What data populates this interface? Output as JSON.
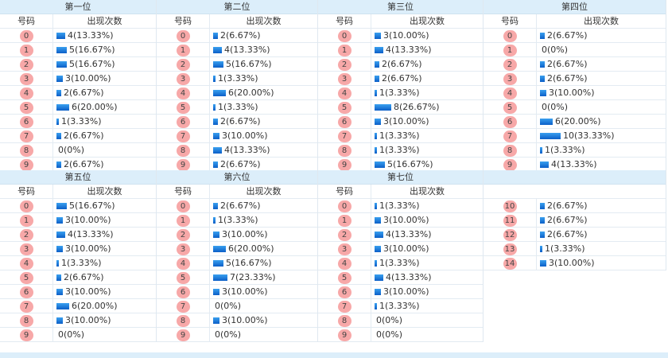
{
  "header": {
    "num_label": "号码",
    "count_label": "出现次数"
  },
  "positions": [
    {
      "title": "第一位",
      "rows": [
        {
          "n": "0",
          "c": 4,
          "t": "4(13.33%)"
        },
        {
          "n": "1",
          "c": 5,
          "t": "5(16.67%)"
        },
        {
          "n": "2",
          "c": 5,
          "t": "5(16.67%)"
        },
        {
          "n": "3",
          "c": 3,
          "t": "3(10.00%)"
        },
        {
          "n": "4",
          "c": 2,
          "t": "2(6.67%)"
        },
        {
          "n": "5",
          "c": 6,
          "t": "6(20.00%)"
        },
        {
          "n": "6",
          "c": 1,
          "t": "1(3.33%)"
        },
        {
          "n": "7",
          "c": 2,
          "t": "2(6.67%)"
        },
        {
          "n": "8",
          "c": 0,
          "t": "0(0%)"
        },
        {
          "n": "9",
          "c": 2,
          "t": "2(6.67%)"
        }
      ]
    },
    {
      "title": "第二位",
      "rows": [
        {
          "n": "0",
          "c": 2,
          "t": "2(6.67%)"
        },
        {
          "n": "1",
          "c": 4,
          "t": "4(13.33%)"
        },
        {
          "n": "2",
          "c": 5,
          "t": "5(16.67%)"
        },
        {
          "n": "3",
          "c": 1,
          "t": "1(3.33%)"
        },
        {
          "n": "4",
          "c": 6,
          "t": "6(20.00%)"
        },
        {
          "n": "5",
          "c": 1,
          "t": "1(3.33%)"
        },
        {
          "n": "6",
          "c": 2,
          "t": "2(6.67%)"
        },
        {
          "n": "7",
          "c": 3,
          "t": "3(10.00%)"
        },
        {
          "n": "8",
          "c": 4,
          "t": "4(13.33%)"
        },
        {
          "n": "9",
          "c": 2,
          "t": "2(6.67%)"
        }
      ]
    },
    {
      "title": "第三位",
      "rows": [
        {
          "n": "0",
          "c": 3,
          "t": "3(10.00%)"
        },
        {
          "n": "1",
          "c": 4,
          "t": "4(13.33%)"
        },
        {
          "n": "2",
          "c": 2,
          "t": "2(6.67%)"
        },
        {
          "n": "3",
          "c": 2,
          "t": "2(6.67%)"
        },
        {
          "n": "4",
          "c": 1,
          "t": "1(3.33%)"
        },
        {
          "n": "5",
          "c": 8,
          "t": "8(26.67%)"
        },
        {
          "n": "6",
          "c": 3,
          "t": "3(10.00%)"
        },
        {
          "n": "7",
          "c": 1,
          "t": "1(3.33%)"
        },
        {
          "n": "8",
          "c": 1,
          "t": "1(3.33%)"
        },
        {
          "n": "9",
          "c": 5,
          "t": "5(16.67%)"
        }
      ]
    },
    {
      "title": "第四位",
      "rows": [
        {
          "n": "0",
          "c": 2,
          "t": "2(6.67%)"
        },
        {
          "n": "1",
          "c": 0,
          "t": "0(0%)"
        },
        {
          "n": "2",
          "c": 2,
          "t": "2(6.67%)"
        },
        {
          "n": "3",
          "c": 2,
          "t": "2(6.67%)"
        },
        {
          "n": "4",
          "c": 3,
          "t": "3(10.00%)"
        },
        {
          "n": "5",
          "c": 0,
          "t": "0(0%)"
        },
        {
          "n": "6",
          "c": 6,
          "t": "6(20.00%)"
        },
        {
          "n": "7",
          "c": 10,
          "t": "10(33.33%)"
        },
        {
          "n": "8",
          "c": 1,
          "t": "1(3.33%)"
        },
        {
          "n": "9",
          "c": 4,
          "t": "4(13.33%)"
        }
      ]
    },
    {
      "title": "第五位",
      "rows": [
        {
          "n": "0",
          "c": 5,
          "t": "5(16.67%)"
        },
        {
          "n": "1",
          "c": 3,
          "t": "3(10.00%)"
        },
        {
          "n": "2",
          "c": 4,
          "t": "4(13.33%)"
        },
        {
          "n": "3",
          "c": 3,
          "t": "3(10.00%)"
        },
        {
          "n": "4",
          "c": 1,
          "t": "1(3.33%)"
        },
        {
          "n": "5",
          "c": 2,
          "t": "2(6.67%)"
        },
        {
          "n": "6",
          "c": 3,
          "t": "3(10.00%)"
        },
        {
          "n": "7",
          "c": 6,
          "t": "6(20.00%)"
        },
        {
          "n": "8",
          "c": 3,
          "t": "3(10.00%)"
        },
        {
          "n": "9",
          "c": 0,
          "t": "0(0%)"
        }
      ]
    },
    {
      "title": "第六位",
      "rows": [
        {
          "n": "0",
          "c": 2,
          "t": "2(6.67%)"
        },
        {
          "n": "1",
          "c": 1,
          "t": "1(3.33%)"
        },
        {
          "n": "2",
          "c": 3,
          "t": "3(10.00%)"
        },
        {
          "n": "3",
          "c": 6,
          "t": "6(20.00%)"
        },
        {
          "n": "4",
          "c": 5,
          "t": "5(16.67%)"
        },
        {
          "n": "5",
          "c": 7,
          "t": "7(23.33%)"
        },
        {
          "n": "6",
          "c": 3,
          "t": "3(10.00%)"
        },
        {
          "n": "7",
          "c": 0,
          "t": "0(0%)"
        },
        {
          "n": "8",
          "c": 3,
          "t": "3(10.00%)"
        },
        {
          "n": "9",
          "c": 0,
          "t": "0(0%)"
        }
      ]
    },
    {
      "title": "第七位",
      "rows": [
        {
          "n": "0",
          "c": 1,
          "t": "1(3.33%)"
        },
        {
          "n": "1",
          "c": 3,
          "t": "3(10.00%)"
        },
        {
          "n": "2",
          "c": 4,
          "t": "4(13.33%)"
        },
        {
          "n": "3",
          "c": 3,
          "t": "3(10.00%)"
        },
        {
          "n": "4",
          "c": 1,
          "t": "1(3.33%)"
        },
        {
          "n": "5",
          "c": 4,
          "t": "4(13.33%)"
        },
        {
          "n": "6",
          "c": 3,
          "t": "3(10.00%)"
        },
        {
          "n": "7",
          "c": 1,
          "t": "1(3.33%)"
        },
        {
          "n": "8",
          "c": 0,
          "t": "0(0%)"
        },
        {
          "n": "9",
          "c": 0,
          "t": "0(0%)"
        }
      ]
    },
    {
      "title": "",
      "noSub": true,
      "rows": [
        {
          "n": "10",
          "c": 2,
          "t": "2(6.67%)"
        },
        {
          "n": "11",
          "c": 2,
          "t": "2(6.67%)"
        },
        {
          "n": "12",
          "c": 2,
          "t": "2(6.67%)"
        },
        {
          "n": "13",
          "c": 1,
          "t": "1(3.33%)"
        },
        {
          "n": "14",
          "c": 3,
          "t": "3(10.00%)"
        }
      ]
    }
  ],
  "colors": {
    "ball": "#f7a8a8",
    "bar": "#0b5fc8",
    "header_bg": "#dceefa"
  }
}
